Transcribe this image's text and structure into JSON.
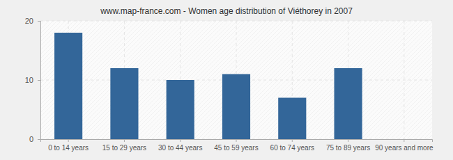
{
  "chart_data": {
    "type": "bar",
    "title": "www.map-france.com - Women age distribution of Viéthorey in 2007",
    "categories": [
      "0 to 14 years",
      "15 to 29 years",
      "30 to 44 years",
      "45 to 59 years",
      "60 to 74 years",
      "75 to 89 years",
      "90 years and more"
    ],
    "values": [
      18,
      12,
      10,
      11,
      7,
      12,
      0
    ],
    "color": "#336699",
    "ylim": [
      0,
      20
    ],
    "yticks": [
      0,
      10,
      20
    ],
    "grid": true
  }
}
